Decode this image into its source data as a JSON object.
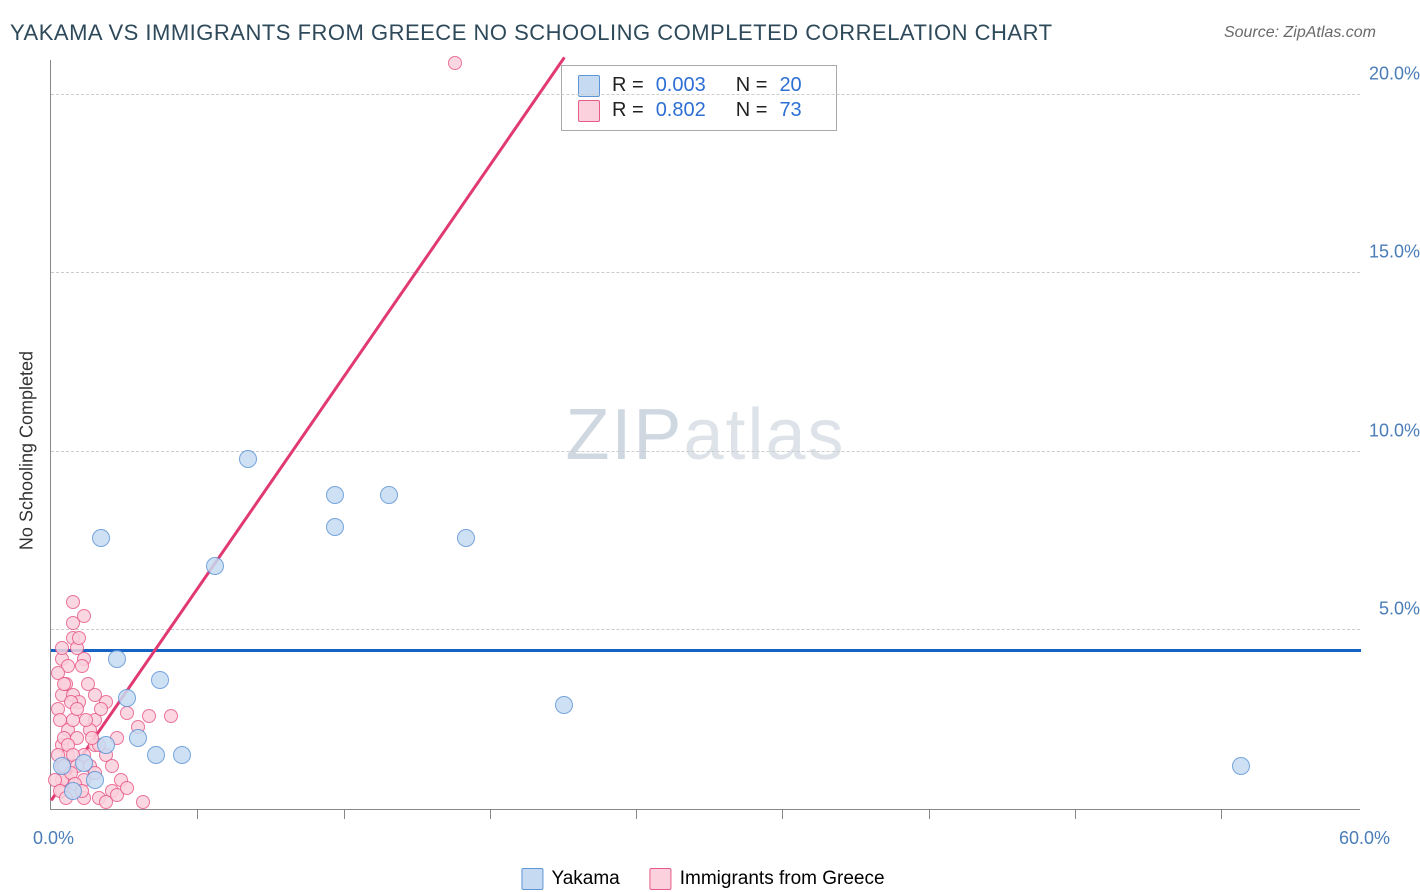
{
  "title": "YAKAMA VS IMMIGRANTS FROM GREECE NO SCHOOLING COMPLETED CORRELATION CHART",
  "source": "Source: ZipAtlas.com",
  "y_axis_label": "No Schooling Completed",
  "watermark_bold": "ZIP",
  "watermark_light": "atlas",
  "chart": {
    "type": "scatter",
    "xlim": [
      0,
      60
    ],
    "ylim": [
      0,
      21
    ],
    "x_tick_step_visual": 6.7,
    "y_gridlines": [
      5,
      10,
      15,
      20
    ],
    "y_tick_labels": [
      "5.0%",
      "10.0%",
      "15.0%",
      "20.0%"
    ],
    "x_label_min": "0.0%",
    "x_label_max": "60.0%",
    "background_color": "#ffffff",
    "grid_color": "#cccccc",
    "axis_color": "#888888",
    "label_color": "#4a7db8",
    "marker_radius": 9,
    "marker_radius_small": 7,
    "series": [
      {
        "name": "Yakama",
        "fill": "#c6dbf2",
        "stroke": "#5d95d6",
        "trend_color": "#1463c4",
        "trend": {
          "type": "horizontal",
          "y": 4.4
        },
        "r": "0.003",
        "n": "20",
        "points": [
          [
            2.3,
            7.6
          ],
          [
            7.5,
            6.8
          ],
          [
            9.0,
            9.8
          ],
          [
            13.0,
            8.8
          ],
          [
            13.0,
            7.9
          ],
          [
            19.0,
            7.6
          ],
          [
            23.5,
            2.9
          ],
          [
            5.0,
            3.6
          ],
          [
            3.5,
            3.1
          ],
          [
            4.0,
            2.0
          ],
          [
            4.8,
            1.5
          ],
          [
            6.0,
            1.5
          ],
          [
            2.5,
            1.8
          ],
          [
            1.5,
            1.3
          ],
          [
            2.0,
            0.8
          ],
          [
            1.0,
            0.5
          ],
          [
            0.5,
            1.2
          ],
          [
            3.0,
            4.2
          ],
          [
            54.5,
            1.2
          ],
          [
            15.5,
            8.8
          ]
        ]
      },
      {
        "name": "Immigrants from Greece",
        "fill": "#fad1dc",
        "stroke": "#e85a8a",
        "trend_color": "#e13a72",
        "trend": {
          "type": "line",
          "x1": 0,
          "y1": 0.2,
          "x2": 23.5,
          "y2": 21
        },
        "r": "0.802",
        "n": "73",
        "points": [
          [
            18.5,
            20.9
          ],
          [
            1.0,
            5.8
          ],
          [
            1.5,
            5.4
          ],
          [
            0.5,
            4.2
          ],
          [
            1.0,
            4.8
          ],
          [
            1.2,
            4.5
          ],
          [
            0.8,
            4.0
          ],
          [
            1.5,
            4.2
          ],
          [
            2.0,
            2.5
          ],
          [
            2.5,
            3.0
          ],
          [
            3.5,
            2.7
          ],
          [
            4.5,
            2.6
          ],
          [
            5.5,
            2.6
          ],
          [
            3.0,
            2.0
          ],
          [
            4.0,
            2.3
          ],
          [
            2.0,
            1.8
          ],
          [
            1.5,
            1.5
          ],
          [
            1.8,
            1.2
          ],
          [
            2.5,
            1.5
          ],
          [
            0.5,
            1.8
          ],
          [
            0.8,
            2.2
          ],
          [
            1.0,
            2.5
          ],
          [
            1.2,
            2.0
          ],
          [
            0.5,
            1.2
          ],
          [
            0.8,
            1.5
          ],
          [
            1.5,
            0.8
          ],
          [
            2.0,
            1.0
          ],
          [
            2.8,
            0.5
          ],
          [
            3.2,
            0.8
          ],
          [
            1.0,
            0.5
          ],
          [
            1.5,
            0.3
          ],
          [
            0.5,
            0.5
          ],
          [
            0.8,
            0.8
          ],
          [
            2.2,
            0.3
          ],
          [
            0.3,
            2.8
          ],
          [
            0.5,
            3.2
          ],
          [
            0.7,
            3.5
          ],
          [
            1.0,
            3.2
          ],
          [
            1.3,
            3.0
          ],
          [
            0.4,
            2.5
          ],
          [
            0.6,
            2.0
          ],
          [
            0.8,
            1.8
          ],
          [
            1.0,
            1.5
          ],
          [
            1.2,
            1.2
          ],
          [
            0.5,
            0.8
          ],
          [
            0.3,
            1.5
          ],
          [
            0.6,
            1.2
          ],
          [
            0.9,
            1.0
          ],
          [
            1.1,
            0.7
          ],
          [
            1.4,
            0.5
          ],
          [
            0.2,
            0.8
          ],
          [
            0.4,
            0.5
          ],
          [
            0.7,
            0.3
          ],
          [
            1.8,
            2.2
          ],
          [
            2.2,
            1.8
          ],
          [
            0.3,
            3.8
          ],
          [
            0.6,
            3.5
          ],
          [
            0.9,
            3.0
          ],
          [
            1.2,
            2.8
          ],
          [
            1.6,
            2.5
          ],
          [
            1.9,
            2.0
          ],
          [
            1.0,
            5.2
          ],
          [
            1.3,
            4.8
          ],
          [
            0.5,
            4.5
          ],
          [
            2.5,
            0.2
          ],
          [
            3.0,
            0.4
          ],
          [
            4.2,
            0.2
          ],
          [
            3.5,
            0.6
          ],
          [
            2.8,
            1.2
          ],
          [
            1.7,
            3.5
          ],
          [
            2.0,
            3.2
          ],
          [
            2.3,
            2.8
          ],
          [
            1.4,
            4.0
          ]
        ]
      }
    ]
  },
  "legend": {
    "series1_label": "Yakama",
    "series2_label": "Immigrants from Greece",
    "r_label": "R =",
    "n_label": "N ="
  }
}
